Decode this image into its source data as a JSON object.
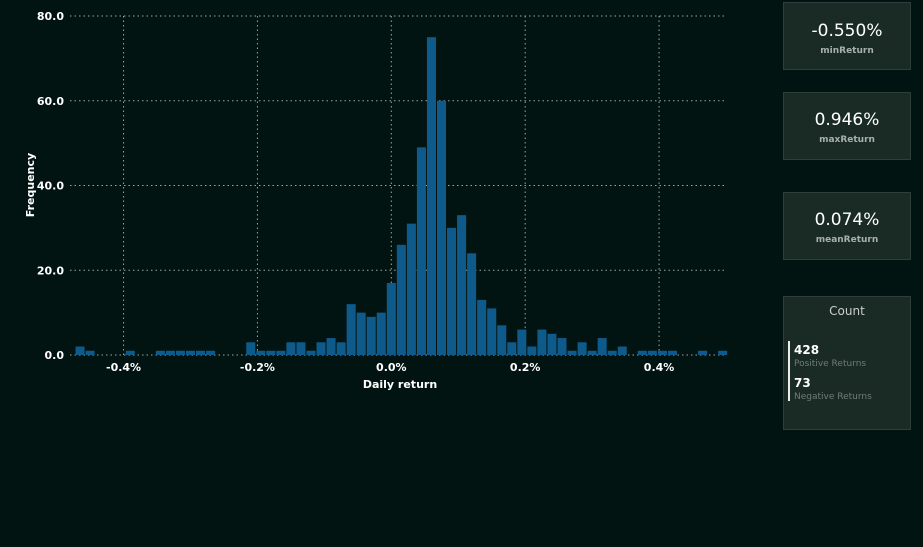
{
  "chart_data": {
    "type": "bar",
    "xlabel": "Daily return",
    "ylabel": "Frequency",
    "xlim": [
      -0.0048,
      0.005
    ],
    "ylim": [
      0,
      80
    ],
    "x_ticks": [
      "-0.4%",
      "-0.2%",
      "0.0%",
      "0.2%",
      "0.4%"
    ],
    "x_tick_values": [
      -0.004,
      -0.002,
      0.0,
      0.002,
      0.004
    ],
    "y_ticks": [
      "0.0",
      "20.0",
      "40.0",
      "60.0",
      "80.0"
    ],
    "y_tick_values": [
      0,
      20,
      40,
      60,
      80
    ],
    "grid": true,
    "bar_color": "#0e5a8a",
    "bins": [
      {
        "x": -0.00465,
        "y": 2
      },
      {
        "x": -0.0045,
        "y": 1
      },
      {
        "x": -0.0039,
        "y": 1
      },
      {
        "x": -0.00345,
        "y": 1
      },
      {
        "x": -0.0033,
        "y": 1
      },
      {
        "x": -0.00315,
        "y": 1
      },
      {
        "x": -0.003,
        "y": 1
      },
      {
        "x": -0.00285,
        "y": 1
      },
      {
        "x": -0.0027,
        "y": 1
      },
      {
        "x": -0.0021,
        "y": 3
      },
      {
        "x": -0.00195,
        "y": 1
      },
      {
        "x": -0.0018,
        "y": 1
      },
      {
        "x": -0.00165,
        "y": 1
      },
      {
        "x": -0.0015,
        "y": 3
      },
      {
        "x": -0.00135,
        "y": 3
      },
      {
        "x": -0.0012,
        "y": 1
      },
      {
        "x": -0.00105,
        "y": 3
      },
      {
        "x": -0.0009,
        "y": 4
      },
      {
        "x": -0.00075,
        "y": 3
      },
      {
        "x": -0.0006,
        "y": 12
      },
      {
        "x": -0.00045,
        "y": 10
      },
      {
        "x": -0.0003,
        "y": 9
      },
      {
        "x": -0.00015,
        "y": 10
      },
      {
        "x": 0.0,
        "y": 17
      },
      {
        "x": 0.00015,
        "y": 26
      },
      {
        "x": 0.0003,
        "y": 31
      },
      {
        "x": 0.00045,
        "y": 49
      },
      {
        "x": 0.0006,
        "y": 75
      },
      {
        "x": 0.00075,
        "y": 60
      },
      {
        "x": 0.0009,
        "y": 30
      },
      {
        "x": 0.00105,
        "y": 33
      },
      {
        "x": 0.0012,
        "y": 24
      },
      {
        "x": 0.00135,
        "y": 13
      },
      {
        "x": 0.0015,
        "y": 11
      },
      {
        "x": 0.00165,
        "y": 7
      },
      {
        "x": 0.0018,
        "y": 3
      },
      {
        "x": 0.00195,
        "y": 6
      },
      {
        "x": 0.0021,
        "y": 2
      },
      {
        "x": 0.00225,
        "y": 6
      },
      {
        "x": 0.0024,
        "y": 5
      },
      {
        "x": 0.00255,
        "y": 4
      },
      {
        "x": 0.0027,
        "y": 1
      },
      {
        "x": 0.00285,
        "y": 3
      },
      {
        "x": 0.003,
        "y": 1
      },
      {
        "x": 0.00315,
        "y": 4
      },
      {
        "x": 0.0033,
        "y": 1
      },
      {
        "x": 0.00345,
        "y": 2
      },
      {
        "x": 0.00375,
        "y": 1
      },
      {
        "x": 0.0039,
        "y": 1
      },
      {
        "x": 0.00405,
        "y": 1
      },
      {
        "x": 0.0042,
        "y": 1
      },
      {
        "x": 0.00465,
        "y": 1
      },
      {
        "x": 0.00495,
        "y": 1
      }
    ]
  },
  "kpis": {
    "min": {
      "value": "-0.550%",
      "label": "minReturn"
    },
    "max": {
      "value": "0.946%",
      "label": "maxReturn"
    },
    "mean": {
      "value": "0.074%",
      "label": "meanReturn"
    }
  },
  "count_card": {
    "title": "Count",
    "positive": {
      "value": "428",
      "label": "Positive Returns"
    },
    "negative": {
      "value": "73",
      "label": "Negative Returns"
    }
  }
}
